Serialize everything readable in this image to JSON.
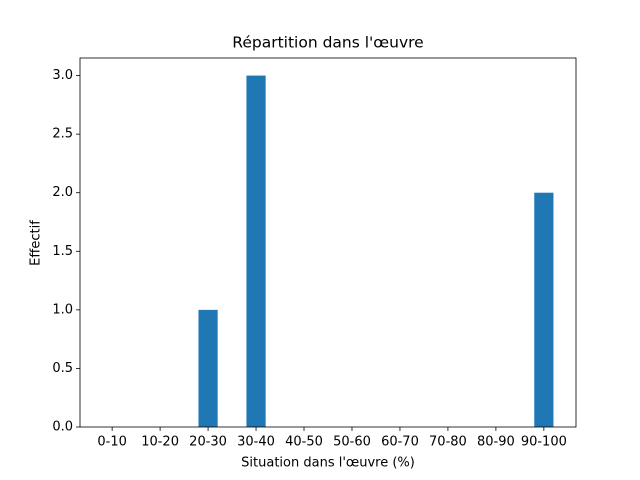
{
  "chart_data": {
    "type": "bar",
    "title": "Répartition dans l'œuvre",
    "xlabel": "Situation dans l'œuvre (%)",
    "ylabel": "Effectif",
    "categories": [
      "0-10",
      "10-20",
      "20-30",
      "30-40",
      "40-50",
      "50-60",
      "60-70",
      "70-80",
      "80-90",
      "90-100"
    ],
    "values": [
      0,
      0,
      1,
      3,
      0,
      0,
      0,
      0,
      0,
      2
    ],
    "color": "#1f77b4",
    "ylim": [
      0,
      3.15
    ],
    "yticks": [
      {
        "value": 0,
        "label": "0.0"
      },
      0.5,
      {
        "value": 1,
        "label": "1.0"
      },
      1.5,
      {
        "value": 2,
        "label": "2.0"
      },
      2.5,
      {
        "value": 3,
        "label": "3.0"
      }
    ],
    "grid": false
  }
}
